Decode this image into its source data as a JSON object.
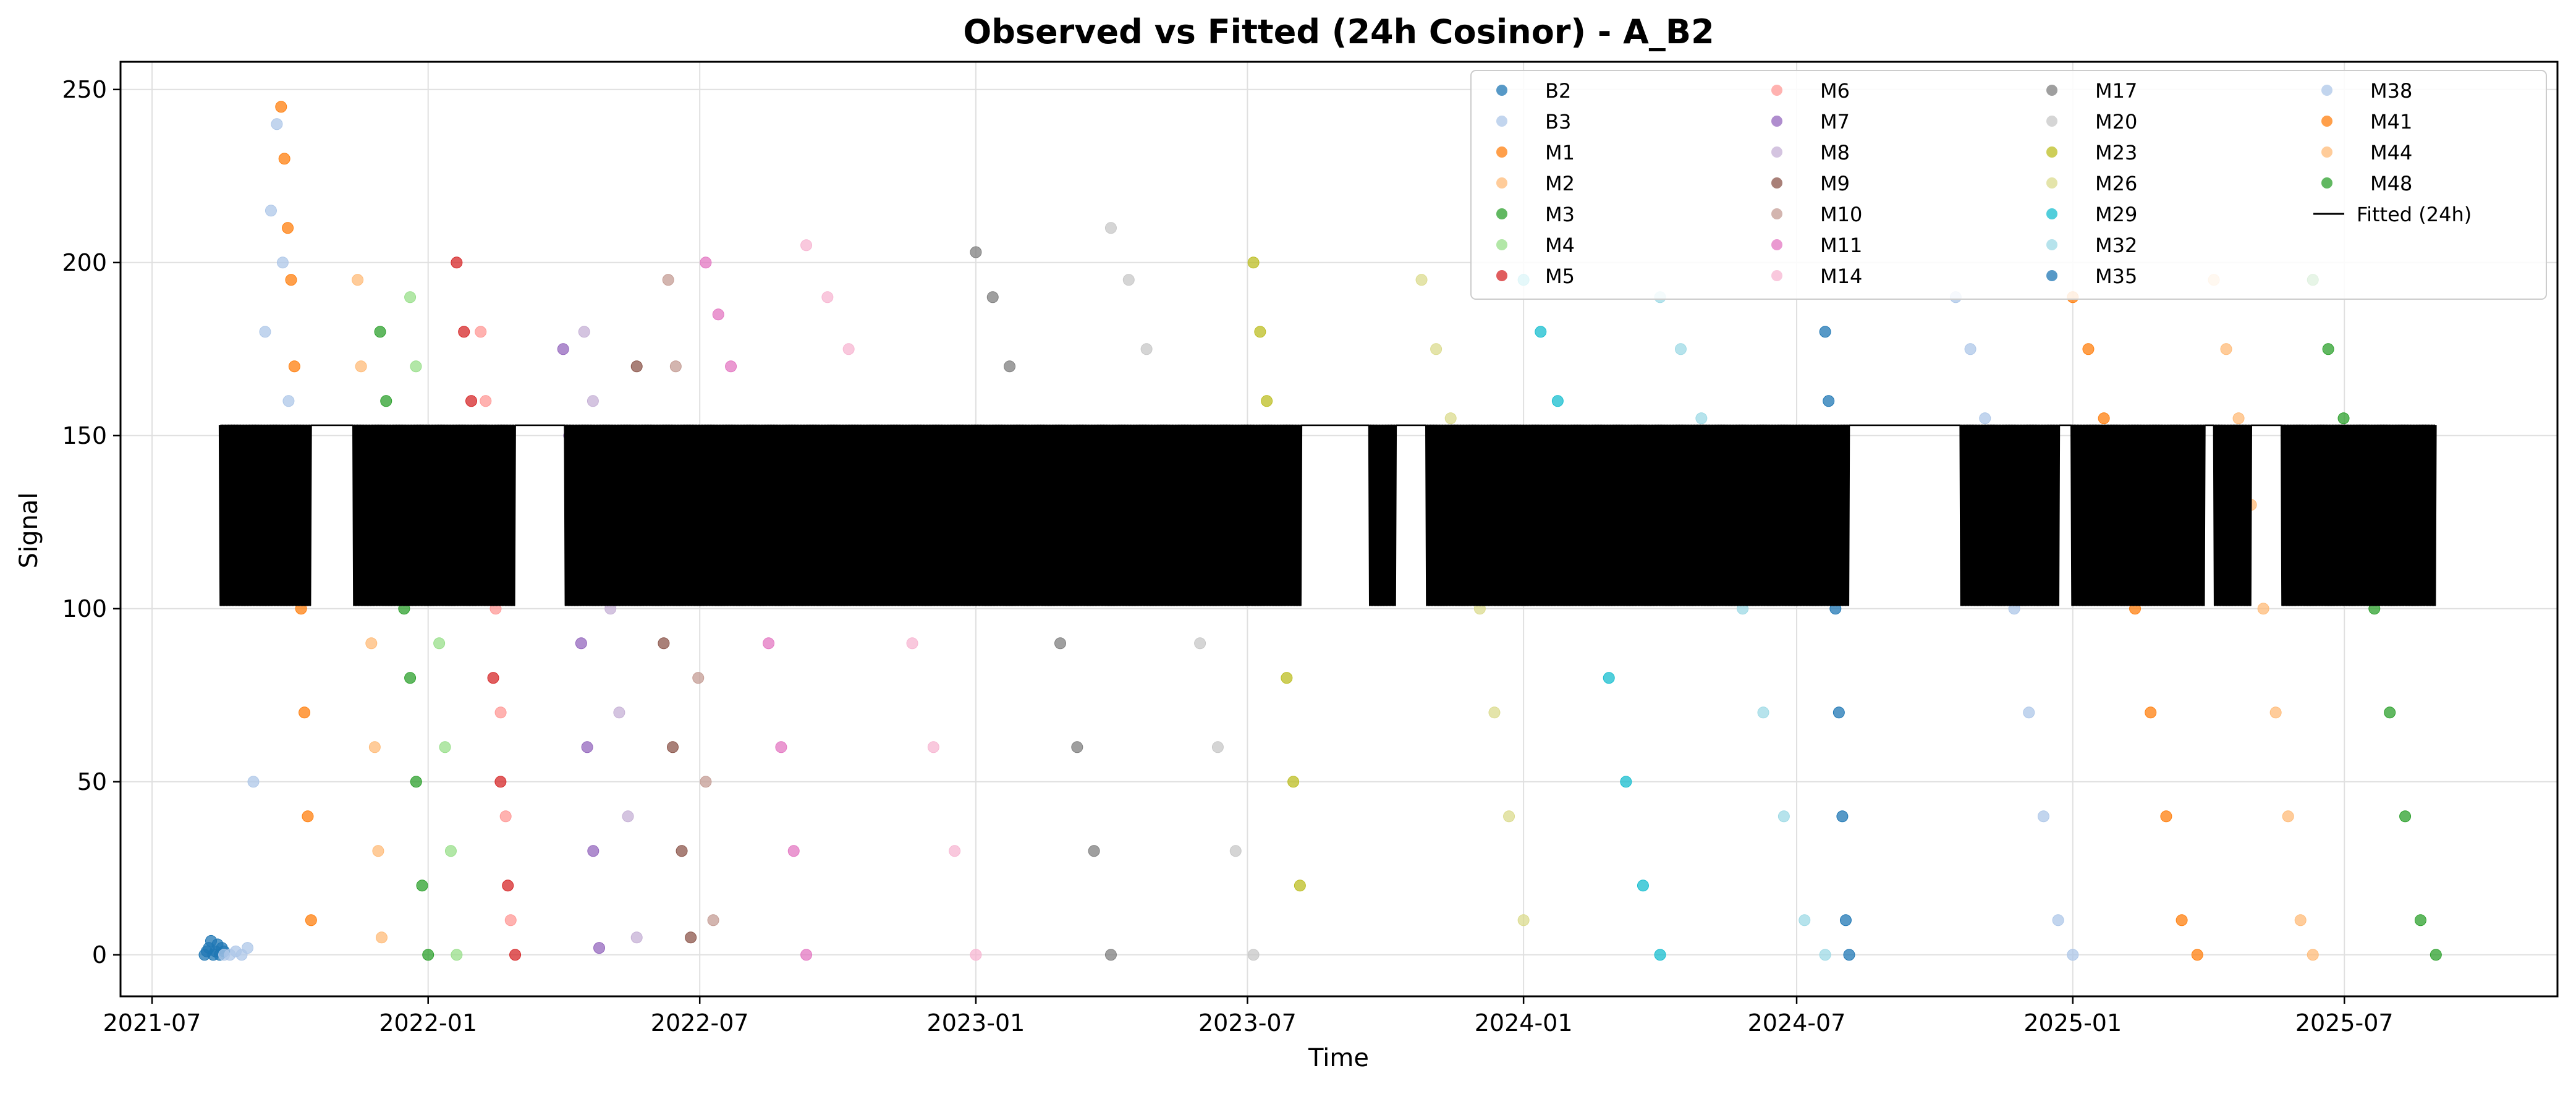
{
  "chart_data": {
    "type": "scatter",
    "title": "Observed vs Fitted (24h Cosinor) - A_B2",
    "xlabel": "Time",
    "ylabel": "Signal",
    "xlim": [
      "2021-06-10",
      "2025-11-20"
    ],
    "ylim": [
      -12,
      258
    ],
    "grid": true,
    "legend_position": "top-right",
    "legend_columns": 4,
    "x_ticks": [
      "2021-07",
      "2022-01",
      "2022-07",
      "2023-01",
      "2023-07",
      "2024-01",
      "2024-07",
      "2025-01",
      "2025-07"
    ],
    "y_ticks": [
      0,
      50,
      100,
      150,
      200,
      250
    ],
    "series": [
      {
        "name": "B2",
        "color": "#1f77b4",
        "start": "2021-08-05",
        "end": "2021-08-18",
        "values": [
          0,
          1,
          2,
          4,
          0,
          1,
          3,
          0,
          2,
          1
        ]
      },
      {
        "name": "B3",
        "color": "#aec7e8",
        "start": "2021-08-18",
        "end": "2021-09-30",
        "values": [
          0,
          0,
          1,
          0,
          2,
          50,
          120,
          180,
          215,
          240,
          200,
          160
        ]
      },
      {
        "name": "M1",
        "color": "#ff7f0e",
        "start": "2021-09-25",
        "end": "2021-10-15",
        "values": [
          245,
          230,
          210,
          195,
          170,
          130,
          100,
          70,
          40,
          10
        ]
      },
      {
        "name": "M2",
        "color": "#ffbb78",
        "start": "2021-11-15",
        "end": "2021-12-01",
        "values": [
          195,
          170,
          150,
          120,
          90,
          60,
          30,
          5
        ]
      },
      {
        "name": "M3",
        "color": "#2ca02c",
        "start": "2021-11-30",
        "end": "2022-01-01",
        "values": [
          180,
          160,
          140,
          120,
          100,
          80,
          50,
          20,
          0
        ]
      },
      {
        "name": "M4",
        "color": "#98df8a",
        "start": "2021-12-20",
        "end": "2022-01-20",
        "values": [
          190,
          170,
          150,
          130,
          110,
          90,
          60,
          30,
          0
        ]
      },
      {
        "name": "M5",
        "color": "#d62728",
        "start": "2022-01-20",
        "end": "2022-02-28",
        "values": [
          200,
          180,
          160,
          140,
          110,
          80,
          50,
          20,
          0
        ]
      },
      {
        "name": "M6",
        "color": "#ff9896",
        "start": "2022-02-05",
        "end": "2022-02-25",
        "values": [
          180,
          160,
          130,
          100,
          70,
          40,
          10
        ]
      },
      {
        "name": "M7",
        "color": "#9467bd",
        "start": "2022-04-01",
        "end": "2022-04-25",
        "values": [
          175,
          150,
          120,
          90,
          60,
          30,
          2
        ]
      },
      {
        "name": "M8",
        "color": "#c5b0d5",
        "start": "2022-04-15",
        "end": "2022-05-20",
        "values": [
          180,
          160,
          130,
          100,
          70,
          40,
          5
        ]
      },
      {
        "name": "M9",
        "color": "#8c564b",
        "start": "2022-05-20",
        "end": "2022-06-25",
        "values": [
          170,
          150,
          120,
          90,
          60,
          30,
          5
        ]
      },
      {
        "name": "M10",
        "color": "#c49c94",
        "start": "2022-06-10",
        "end": "2022-07-10",
        "values": [
          195,
          170,
          140,
          110,
          80,
          50,
          10
        ]
      },
      {
        "name": "M11",
        "color": "#e377c2",
        "start": "2022-07-05",
        "end": "2022-09-10",
        "values": [
          200,
          185,
          170,
          150,
          120,
          90,
          60,
          30,
          0
        ]
      },
      {
        "name": "M14",
        "color": "#f7b6d2",
        "start": "2022-09-10",
        "end": "2023-01-01",
        "values": [
          205,
          190,
          175,
          150,
          120,
          90,
          60,
          30,
          0
        ]
      },
      {
        "name": "M17",
        "color": "#7f7f7f",
        "start": "2023-01-01",
        "end": "2023-04-01",
        "values": [
          203,
          190,
          170,
          150,
          120,
          90,
          60,
          30,
          0
        ]
      },
      {
        "name": "M20",
        "color": "#c7c7c7",
        "start": "2023-04-01",
        "end": "2023-07-05",
        "values": [
          210,
          195,
          175,
          150,
          120,
          90,
          60,
          30,
          0
        ]
      },
      {
        "name": "M23",
        "color": "#bcbd22",
        "start": "2023-07-05",
        "end": "2023-08-05",
        "values": [
          200,
          180,
          160,
          140,
          110,
          80,
          50,
          20
        ]
      },
      {
        "name": "M26",
        "color": "#dbdb8d",
        "start": "2023-10-25",
        "end": "2024-01-01",
        "values": [
          195,
          175,
          155,
          130,
          100,
          70,
          40,
          10
        ]
      },
      {
        "name": "M29",
        "color": "#17becf",
        "start": "2024-01-01",
        "end": "2024-04-01",
        "values": [
          195,
          180,
          160,
          140,
          110,
          80,
          50,
          20,
          0
        ]
      },
      {
        "name": "M32",
        "color": "#9edae5",
        "start": "2024-04-01",
        "end": "2024-07-20",
        "values": [
          190,
          175,
          155,
          130,
          100,
          70,
          40,
          10,
          0
        ]
      },
      {
        "name": "M35",
        "color": "#1f77b4",
        "start": "2024-07-20",
        "end": "2024-08-05",
        "values": [
          180,
          160,
          130,
          100,
          70,
          40,
          10,
          0
        ]
      },
      {
        "name": "M38",
        "color": "#aec7e8",
        "start": "2024-10-15",
        "end": "2025-01-01",
        "values": [
          190,
          175,
          155,
          130,
          100,
          70,
          40,
          10,
          0
        ]
      },
      {
        "name": "M41",
        "color": "#ff7f0e",
        "start": "2025-01-01",
        "end": "2025-03-25",
        "values": [
          190,
          175,
          155,
          130,
          100,
          70,
          40,
          10,
          0
        ]
      },
      {
        "name": "M44",
        "color": "#ffbb78",
        "start": "2025-04-05",
        "end": "2025-06-10",
        "values": [
          195,
          175,
          155,
          130,
          100,
          70,
          40,
          10,
          0
        ]
      },
      {
        "name": "M48",
        "color": "#2ca02c",
        "start": "2025-06-10",
        "end": "2025-08-31",
        "values": [
          195,
          175,
          155,
          130,
          100,
          70,
          40,
          10,
          0
        ]
      }
    ],
    "fitted": {
      "name": "Fitted (24h)",
      "color": "#000000",
      "mesor": 127,
      "amplitude": 26,
      "segments": [
        [
          "2021-08-15",
          "2021-10-15"
        ],
        [
          "2021-11-12",
          "2022-02-28"
        ],
        [
          "2022-04-02",
          "2023-08-06"
        ],
        [
          "2023-09-20",
          "2023-10-08"
        ],
        [
          "2023-10-28",
          "2024-08-05"
        ],
        [
          "2024-10-18",
          "2024-12-23"
        ],
        [
          "2024-12-31",
          "2025-03-30"
        ],
        [
          "2025-04-05",
          "2025-04-30"
        ],
        [
          "2025-05-20",
          "2025-08-31"
        ]
      ]
    }
  }
}
